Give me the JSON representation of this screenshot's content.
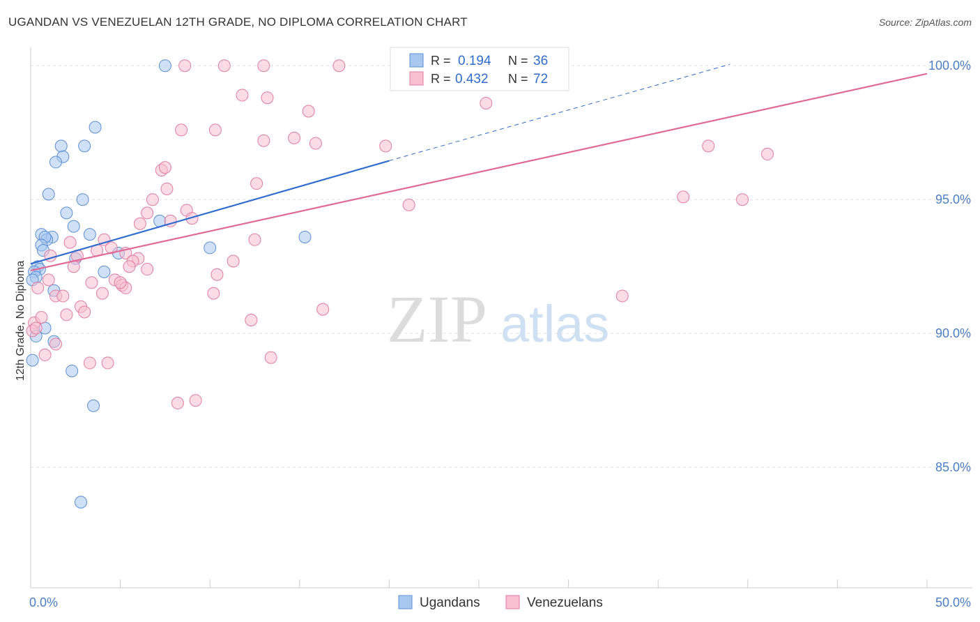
{
  "title": "UGANDAN VS VENEZUELAN 12TH GRADE, NO DIPLOMA CORRELATION CHART",
  "source": "Source: ZipAtlas.com",
  "watermark": {
    "zip": "ZIP",
    "atlas": "atlas"
  },
  "legend": {
    "r_label": "R =",
    "n_label": "N =",
    "rows": [
      {
        "r": "0.194",
        "n": "36",
        "color": "#a9c8f0",
        "stroke": "#5b8fd6"
      },
      {
        "r": "0.432",
        "n": "72",
        "color": "#f7bfd0",
        "stroke": "#e07da0"
      }
    ]
  },
  "chart_data": {
    "type": "scatter",
    "ylabel": "12th Grade, No Diploma",
    "xlim": [
      0,
      50
    ],
    "ylim": [
      80.5,
      100.5
    ],
    "x_tick_labels": [
      {
        "value": 0,
        "label": "0.0%"
      },
      {
        "value": 50,
        "label": "50.0%"
      }
    ],
    "y_tick_labels": [
      {
        "value": 100,
        "label": "100.0%"
      },
      {
        "value": 95,
        "label": "95.0%"
      },
      {
        "value": 90,
        "label": "90.0%"
      },
      {
        "value": 85,
        "label": "85.0%"
      }
    ],
    "series": [
      {
        "name": "Ugandans",
        "color": "#a9c8f0",
        "stroke": "#5b8fd6",
        "line_color": "#2f6ccf",
        "trend": {
          "x0": 0,
          "y0": 92.6,
          "x1": 20,
          "y1": 96.45,
          "dash_x1": 39,
          "dash_y1": 100.05
        },
        "points": [
          [
            7.5,
            100
          ],
          [
            3.6,
            97.7
          ],
          [
            1.7,
            97.0
          ],
          [
            3.0,
            97.0
          ],
          [
            1.8,
            96.6
          ],
          [
            1.4,
            96.4
          ],
          [
            1.0,
            95.2
          ],
          [
            2.9,
            95.0
          ],
          [
            2.0,
            94.5
          ],
          [
            7.2,
            94.2
          ],
          [
            2.4,
            94.0
          ],
          [
            0.6,
            93.7
          ],
          [
            3.3,
            93.7
          ],
          [
            1.2,
            93.6
          ],
          [
            0.9,
            93.5
          ],
          [
            0.8,
            93.6
          ],
          [
            0.6,
            93.3
          ],
          [
            15.3,
            93.6
          ],
          [
            0.7,
            93.1
          ],
          [
            10.0,
            93.2
          ],
          [
            4.9,
            93.0
          ],
          [
            2.5,
            92.8
          ],
          [
            0.4,
            92.5
          ],
          [
            0.5,
            92.4
          ],
          [
            0.2,
            92.3
          ],
          [
            4.1,
            92.3
          ],
          [
            0.3,
            92.1
          ],
          [
            1.3,
            91.6
          ],
          [
            0.8,
            90.2
          ],
          [
            0.3,
            89.9
          ],
          [
            1.3,
            89.7
          ],
          [
            0.1,
            89.0
          ],
          [
            2.3,
            88.6
          ],
          [
            3.5,
            87.3
          ],
          [
            2.8,
            83.7
          ],
          [
            0.1,
            92.0
          ]
        ]
      },
      {
        "name": "Venezuelans",
        "color": "#f7bfd0",
        "stroke": "#e07da0",
        "line_color": "#e06a95",
        "trend": {
          "x0": 0,
          "y0": 92.35,
          "x1": 50,
          "y1": 99.7
        },
        "points": [
          [
            8.6,
            100
          ],
          [
            10.8,
            100
          ],
          [
            13.0,
            100
          ],
          [
            17.2,
            100
          ],
          [
            11.8,
            98.9
          ],
          [
            13.2,
            98.8
          ],
          [
            15.5,
            98.3
          ],
          [
            25.4,
            98.6
          ],
          [
            8.4,
            97.6
          ],
          [
            10.3,
            97.6
          ],
          [
            13.0,
            97.2
          ],
          [
            14.7,
            97.3
          ],
          [
            15.9,
            97.1
          ],
          [
            19.8,
            97.0
          ],
          [
            37.8,
            97.0
          ],
          [
            41.1,
            96.7
          ],
          [
            7.3,
            96.1
          ],
          [
            7.5,
            96.2
          ],
          [
            12.6,
            95.6
          ],
          [
            7.6,
            95.4
          ],
          [
            6.8,
            95.0
          ],
          [
            36.4,
            95.1
          ],
          [
            39.7,
            95.0
          ],
          [
            8.7,
            94.6
          ],
          [
            6.5,
            94.5
          ],
          [
            21.1,
            94.8
          ],
          [
            9.0,
            94.3
          ],
          [
            6.1,
            94.1
          ],
          [
            7.8,
            94.2
          ],
          [
            4.1,
            93.5
          ],
          [
            2.2,
            93.4
          ],
          [
            4.5,
            93.2
          ],
          [
            12.5,
            93.5
          ],
          [
            3.7,
            93.1
          ],
          [
            1.1,
            92.9
          ],
          [
            5.3,
            93.0
          ],
          [
            2.6,
            92.9
          ],
          [
            6.0,
            92.8
          ],
          [
            5.7,
            92.7
          ],
          [
            11.3,
            92.7
          ],
          [
            2.4,
            92.5
          ],
          [
            5.5,
            92.5
          ],
          [
            6.5,
            92.4
          ],
          [
            10.4,
            92.2
          ],
          [
            1.0,
            92.0
          ],
          [
            4.7,
            92.0
          ],
          [
            3.4,
            91.9
          ],
          [
            5.1,
            91.8
          ],
          [
            5.3,
            91.7
          ],
          [
            0.4,
            91.7
          ],
          [
            1.4,
            91.4
          ],
          [
            10.2,
            91.5
          ],
          [
            4.0,
            91.5
          ],
          [
            33.0,
            91.4
          ],
          [
            1.8,
            91.4
          ],
          [
            2.8,
            91.0
          ],
          [
            16.3,
            90.9
          ],
          [
            2.0,
            90.7
          ],
          [
            3.0,
            90.8
          ],
          [
            0.2,
            90.4
          ],
          [
            12.3,
            90.5
          ],
          [
            0.6,
            90.6
          ],
          [
            1.4,
            89.6
          ],
          [
            0.8,
            89.2
          ],
          [
            13.4,
            89.1
          ],
          [
            3.3,
            88.9
          ],
          [
            4.3,
            88.9
          ],
          [
            9.2,
            87.5
          ],
          [
            8.2,
            87.4
          ],
          [
            0.1,
            90.1
          ],
          [
            0.3,
            90.2
          ],
          [
            5.0,
            91.9
          ]
        ]
      }
    ]
  }
}
